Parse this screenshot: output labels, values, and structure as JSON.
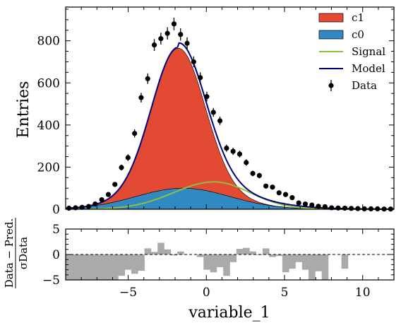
{
  "chart_data": [
    {
      "type": "area",
      "ylabel": "Entries",
      "xlim": [
        -9,
        12
      ],
      "ylim": [
        0,
        960
      ],
      "yticks": [
        0,
        200,
        400,
        600,
        800
      ],
      "legend_position": "top-right",
      "stack": {
        "c0": {
          "name": "c0",
          "color": "#3189c1",
          "mean": -1.5,
          "sigma": 3.0,
          "amplitude": 100
        },
        "c1": {
          "name": "c1",
          "color": "#e34a33",
          "mean": -1.8,
          "sigma": 1.7,
          "amplitude": 665
        }
      },
      "lines": {
        "signal": {
          "name": "Signal",
          "color": "#8fbf3f"
        },
        "model": {
          "name": "Model",
          "color": "#00007f"
        }
      },
      "data": {
        "name": "Data",
        "x": [
          -8.79,
          -8.37,
          -7.95,
          -7.53,
          -7.11,
          -6.69,
          -6.27,
          -5.85,
          -5.43,
          -5.01,
          -4.59,
          -4.17,
          -3.75,
          -3.33,
          -2.91,
          -2.49,
          -2.07,
          -1.65,
          -1.23,
          -0.81,
          -0.39,
          0.03,
          0.45,
          0.87,
          1.29,
          1.71,
          2.13,
          2.55,
          2.97,
          3.39,
          3.81,
          4.23,
          4.65,
          5.07,
          5.49,
          5.91,
          6.33,
          6.75,
          7.17,
          7.59,
          8.01,
          8.43,
          8.85,
          9.27,
          9.69,
          10.11,
          10.53,
          10.95,
          11.37,
          11.79
        ],
        "y": [
          5,
          7,
          9,
          13,
          25,
          45,
          70,
          118,
          198,
          245,
          360,
          530,
          620,
          780,
          810,
          835,
          880,
          830,
          788,
          700,
          625,
          535,
          460,
          420,
          290,
          275,
          262,
          222,
          170,
          160,
          110,
          105,
          78,
          70,
          55,
          30,
          25,
          20,
          14,
          12,
          7,
          6,
          5,
          4,
          3,
          2,
          2,
          2,
          1,
          1
        ],
        "yerr": [
          2,
          3,
          3,
          4,
          5,
          7,
          8,
          11,
          14,
          16,
          19,
          23,
          25,
          28,
          28,
          29,
          30,
          29,
          28,
          26,
          25,
          23,
          21,
          20,
          17,
          17,
          16,
          15,
          13,
          13,
          10,
          10,
          9,
          8,
          7,
          5,
          5,
          4,
          4,
          3,
          3,
          2,
          2,
          2,
          2,
          1,
          1,
          1,
          1,
          1
        ]
      }
    },
    {
      "type": "bar",
      "ylabel_num": "Data − Pred.",
      "ylabel_den": "σData",
      "xlabel": "variable_1",
      "xlim": [
        -9,
        12
      ],
      "ylim": [
        -5,
        5
      ],
      "yticks": [
        -5,
        0,
        5
      ],
      "xticks": [
        -5,
        0,
        5,
        10
      ],
      "reference_line": 0,
      "bar_color": "#aaaaaa",
      "x": [
        -8.79,
        -8.37,
        -7.95,
        -7.53,
        -7.11,
        -6.69,
        -6.27,
        -5.85,
        -5.43,
        -5.01,
        -4.59,
        -4.17,
        -3.75,
        -3.33,
        -2.91,
        -2.49,
        -2.07,
        -1.65,
        -1.23,
        -0.81,
        -0.39,
        0.03,
        0.45,
        0.87,
        1.29,
        1.71,
        2.13,
        2.55,
        2.97,
        3.39,
        3.81,
        4.23,
        4.65,
        5.07,
        5.49,
        5.91,
        6.33,
        6.75,
        7.17,
        7.59,
        8.01,
        8.43,
        8.85,
        9.27,
        9.69,
        10.11,
        10.53,
        10.95,
        11.37,
        11.79
      ],
      "values": [
        -5,
        -5,
        -5,
        -5,
        -5,
        -5,
        -5,
        -5,
        -4.2,
        -3.0,
        -3.8,
        -3.2,
        1.2,
        0.5,
        2.3,
        1.0,
        -0.2,
        0.6,
        0,
        0,
        -0.5,
        -3.0,
        -3.5,
        -2.5,
        -4.2,
        -1.5,
        1.1,
        1.3,
        0.6,
        -0.1,
        1.2,
        -0.5,
        -0.3,
        -3.5,
        -2.8,
        -1.5,
        -3.0,
        -5,
        -3.3,
        -5,
        0,
        0,
        -2.8,
        0,
        0,
        0,
        0,
        0,
        0,
        0
      ]
    }
  ]
}
